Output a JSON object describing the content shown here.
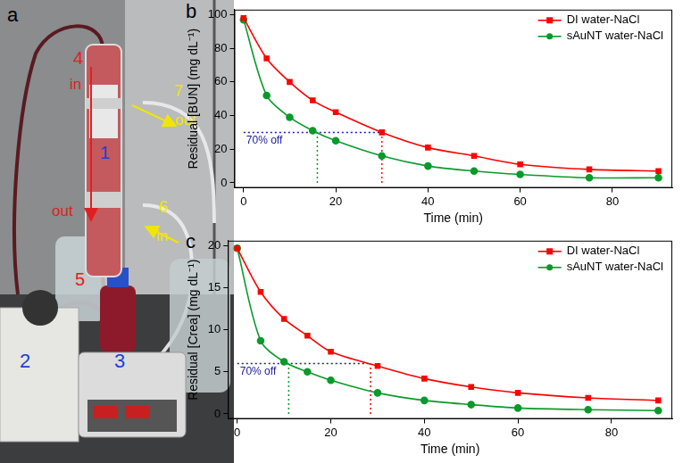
{
  "photo": {
    "panel_label": "a",
    "labels": [
      {
        "text": "1",
        "color": "#1f3fd0"
      },
      {
        "text": "2",
        "color": "#1f3fd0"
      },
      {
        "text": "3",
        "color": "#1f3fd0"
      },
      {
        "text": "4",
        "color": "#e02020"
      },
      {
        "text": "in",
        "color": "#e02020"
      },
      {
        "text": "out",
        "color": "#e02020"
      },
      {
        "text": "5",
        "color": "#e02020"
      },
      {
        "text": "6",
        "color": "#f2e600"
      },
      {
        "text": "in",
        "color": "#f2e600"
      },
      {
        "text": "7",
        "color": "#f2e600"
      },
      {
        "text": "out",
        "color": "#f2e600"
      }
    ]
  },
  "chart_data": [
    {
      "type": "line",
      "panel_label": "b",
      "x_label": "Time (min)",
      "y_label": "Residual [BUN] (mg dL⁻¹)",
      "x": [
        0,
        5,
        10,
        15,
        20,
        30,
        40,
        50,
        60,
        75,
        90
      ],
      "series": [
        {
          "name": "DI water-NaCl",
          "color": "#ff0000",
          "marker": "square",
          "values": [
            98,
            74,
            60,
            49,
            42,
            30,
            21,
            16,
            11,
            8,
            7
          ]
        },
        {
          "name": "sAuNT water-NaCl",
          "color": "#0a9a2b",
          "marker": "circle",
          "values": [
            97,
            52,
            39,
            31,
            25,
            16,
            10,
            7,
            5,
            3,
            3
          ]
        }
      ],
      "guides": [
        {
          "x": [
            0,
            30
          ],
          "y": [
            30,
            30
          ],
          "color": "#1a1aa0",
          "line_style": "dotted",
          "label": "70% off"
        },
        {
          "x": [
            16,
            16
          ],
          "y": [
            0,
            30
          ],
          "color": "#0a9a2b",
          "line_style": "dotted"
        },
        {
          "x": [
            30,
            30
          ],
          "y": [
            0,
            30
          ],
          "color": "#ff0000",
          "line_style": "dotted"
        }
      ],
      "xlim": [
        -2,
        93
      ],
      "xticks": [
        0,
        20,
        40,
        60,
        80
      ],
      "ylim": [
        -3,
        103
      ],
      "yticks": [
        0,
        20,
        40,
        60,
        80,
        100
      ],
      "grid": false,
      "legend": "upper right"
    },
    {
      "type": "line",
      "panel_label": "c",
      "x_label": "Time (min)",
      "y_label": "Residual [Crea] (mg dL⁻¹)",
      "x": [
        0,
        5,
        10,
        15,
        20,
        30,
        40,
        50,
        60,
        75,
        90
      ],
      "series": [
        {
          "name": "DI water-NaCl",
          "color": "#ff0000",
          "marker": "square",
          "values": [
            19.7,
            14.5,
            11.3,
            9.3,
            7.4,
            5.7,
            4.2,
            3.2,
            2.5,
            1.9,
            1.6
          ]
        },
        {
          "name": "sAuNT water-NaCl",
          "color": "#0a9a2b",
          "marker": "circle",
          "values": [
            19.7,
            8.7,
            6.2,
            5.0,
            4.0,
            2.5,
            1.6,
            1.1,
            0.7,
            0.5,
            0.4
          ]
        }
      ],
      "guides": [
        {
          "x": [
            0,
            28.5
          ],
          "y": [
            6,
            6
          ],
          "color": "#1a1aa0",
          "line_style": "dotted",
          "label": "70% off"
        },
        {
          "x": [
            11,
            11
          ],
          "y": [
            0,
            6
          ],
          "color": "#0a9a2b",
          "line_style": "dotted"
        },
        {
          "x": [
            28.5,
            28.5
          ],
          "y": [
            0,
            6
          ],
          "color": "#ff0000",
          "line_style": "dotted"
        }
      ],
      "xlim": [
        -2,
        93
      ],
      "xticks": [
        0,
        20,
        40,
        60,
        80
      ],
      "ylim": [
        -0.6,
        20.6
      ],
      "yticks": [
        0,
        5,
        10,
        15,
        20
      ],
      "grid": false,
      "legend": "upper right"
    }
  ]
}
